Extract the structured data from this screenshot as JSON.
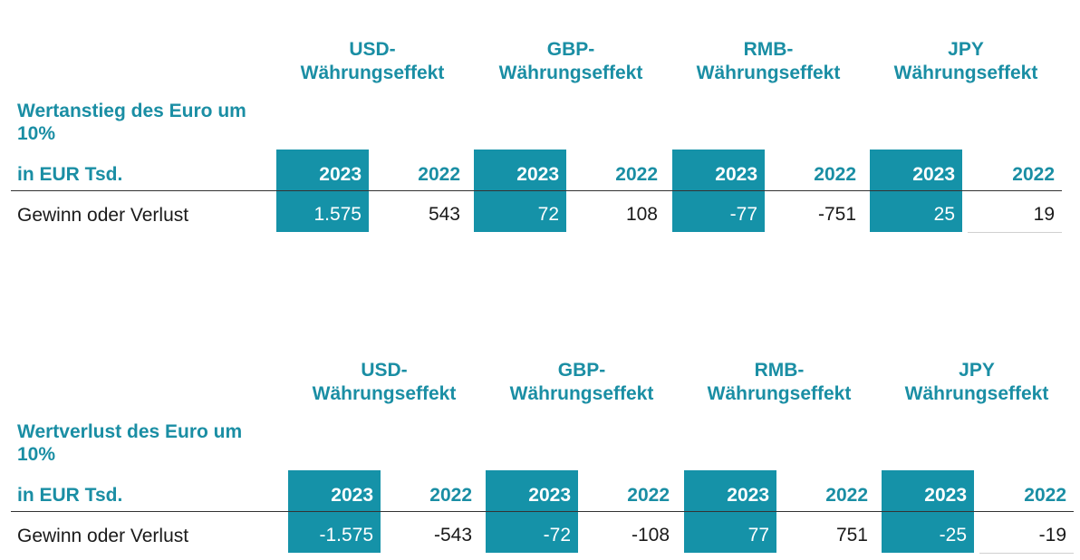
{
  "tables": [
    {
      "currency_headers": [
        {
          "line1": "USD-",
          "line2": "Währungseffekt"
        },
        {
          "line1": "GBP-",
          "line2": "Währungseffekt"
        },
        {
          "line1": "RMB-",
          "line2": "Währungseffekt"
        },
        {
          "line1": "JPY",
          "line2": "Währungseffekt"
        }
      ],
      "title": "Wertanstieg des Euro um 10%",
      "unit": "in EUR Tsd.",
      "years": [
        "2023",
        "2022",
        "2023",
        "2022",
        "2023",
        "2022",
        "2023",
        "2022"
      ],
      "row_label": "Gewinn oder Verlust",
      "values": [
        "1.575",
        "543",
        "72",
        "108",
        "-77",
        "-751",
        "25",
        "19"
      ]
    },
    {
      "currency_headers": [
        {
          "line1": "USD-",
          "line2": "Währungseffekt"
        },
        {
          "line1": "GBP-",
          "line2": "Währungseffekt"
        },
        {
          "line1": "RMB-",
          "line2": "Währungseffekt"
        },
        {
          "line1": "JPY",
          "line2": "Währungseffekt"
        }
      ],
      "title": "Wertverlust des Euro um 10%",
      "unit": "in EUR Tsd.",
      "years": [
        "2023",
        "2022",
        "2023",
        "2022",
        "2023",
        "2022",
        "2023",
        "2022"
      ],
      "row_label": "Gewinn oder Verlust",
      "values": [
        "-1.575",
        "-543",
        "-72",
        "-108",
        "77",
        "751",
        "-25",
        "-19"
      ]
    }
  ],
  "colors": {
    "accent": "#1592a8",
    "text": "#1a1a1a"
  }
}
